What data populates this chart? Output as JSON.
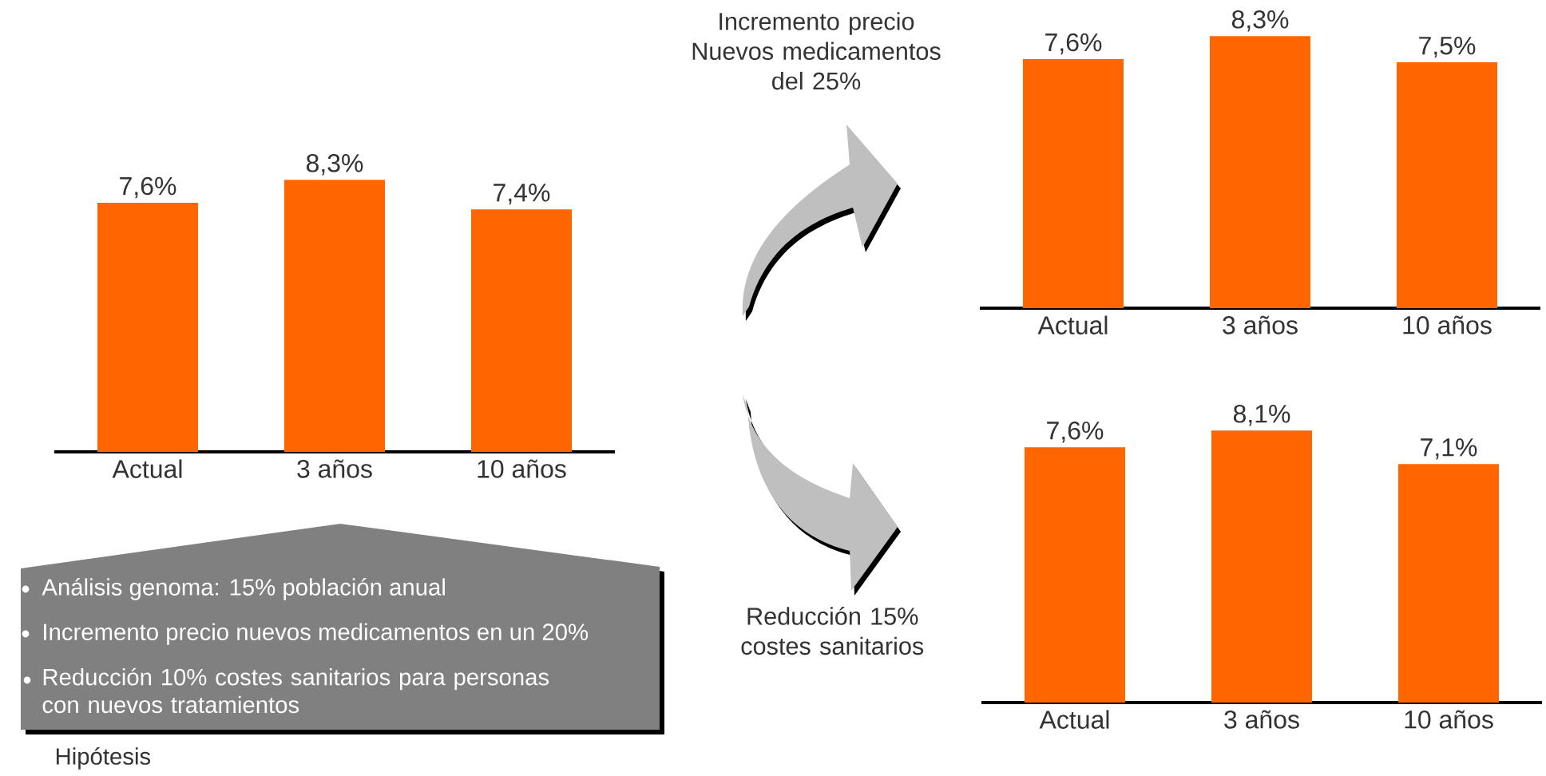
{
  "chart_data": [
    {
      "type": "bar",
      "categories": [
        "Actual",
        "3 años",
        "10 años"
      ],
      "values": [
        7.6,
        8.3,
        7.4
      ],
      "value_labels": [
        "7,6%",
        "8,3%",
        "7,4%"
      ],
      "color": "#ff6600",
      "annotations": [
        "Análisis genoma: 15% población anual",
        "Incremento precio nuevos medicamentos en un 20%",
        "Reducción 10% costes sanitarios para personas con nuevos tratamientos",
        "Hipótesis"
      ]
    },
    {
      "type": "bar",
      "title": "Incremento precio Nuevos medicamentos del 25%",
      "categories": [
        "Actual",
        "3 años",
        "10 años"
      ],
      "values": [
        7.6,
        8.3,
        7.5
      ],
      "value_labels": [
        "7,6%",
        "8,3%",
        "7,5%"
      ],
      "color": "#ff6600"
    },
    {
      "type": "bar",
      "title": "Reducción 15% costes sanitarios",
      "categories": [
        "Actual",
        "3 años",
        "10 años"
      ],
      "values": [
        7.6,
        8.1,
        7.1
      ],
      "value_labels": [
        "7,6%",
        "8,1%",
        "7,1%"
      ],
      "color": "#ff6600"
    }
  ]
}
